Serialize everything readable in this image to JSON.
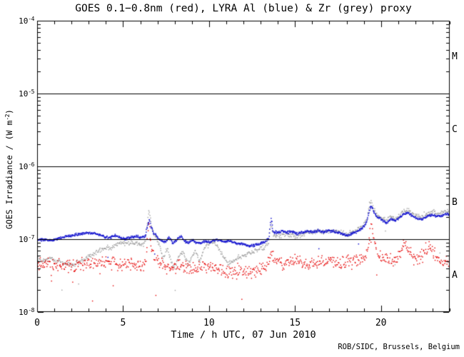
{
  "title": "GOES 0.1−0.8nm (red), LYRA Al (blue) & Zr (grey) proxy",
  "credit": "ROB/SIDC, Brussels, Belgium",
  "chart_data": {
    "type": "scatter",
    "title": "GOES 0.1−0.8nm (red), LYRA Al (blue) & Zr (grey) proxy",
    "xlabel": "Time / h UTC, 07 Jun 2010",
    "ylabel_parts": {
      "pre": "GOES Irradiance / (W m",
      "sup": "-2",
      "post": ")"
    },
    "background": "#ffffff",
    "axis_color": "#000000",
    "xlim": [
      0,
      24
    ],
    "ylog_range": [
      -8,
      -4
    ],
    "x_major_ticks": [
      0,
      5,
      10,
      15,
      20
    ],
    "x_minor_step": 1,
    "y_tick_exponents": [
      -4,
      -5,
      -6,
      -7,
      -8
    ],
    "hlines": [
      1e-05,
      1e-06,
      1e-07
    ],
    "flare_class_labels": [
      {
        "label": "M",
        "log_mid": -4.5
      },
      {
        "label": "C",
        "log_mid": -5.5
      },
      {
        "label": "B",
        "log_mid": -6.5
      },
      {
        "label": "A",
        "log_mid": -7.5
      }
    ],
    "legend_note": "colors named in title",
    "series": [
      {
        "name": "LYRA Zr proxy",
        "color": "#a0a0a0",
        "scale": 1e-07,
        "step": 0.03,
        "noise_dex": 0.016,
        "outlier_rate": 0.012,
        "outlier_min": 0.15,
        "outlier_span": 0.5,
        "dot": 1.4,
        "seed": 22,
        "points": [
          [
            0,
            0.56
          ],
          [
            0.4,
            0.52
          ],
          [
            0.8,
            0.55
          ],
          [
            1.2,
            0.5
          ],
          [
            1.6,
            0.47
          ],
          [
            2.0,
            0.44
          ],
          [
            2.4,
            0.49
          ],
          [
            2.8,
            0.55
          ],
          [
            3.2,
            0.62
          ],
          [
            3.6,
            0.72
          ],
          [
            4.0,
            0.76
          ],
          [
            4.4,
            0.8
          ],
          [
            4.8,
            0.88
          ],
          [
            5.2,
            0.91
          ],
          [
            5.6,
            0.89
          ],
          [
            6.0,
            0.87
          ],
          [
            6.25,
            0.92
          ],
          [
            6.42,
            2.0
          ],
          [
            6.5,
            2.6
          ],
          [
            6.62,
            1.55
          ],
          [
            6.78,
            1.18
          ],
          [
            6.95,
            0.98
          ],
          [
            7.1,
            0.8
          ],
          [
            7.3,
            0.56
          ],
          [
            7.55,
            0.76
          ],
          [
            7.8,
            0.48
          ],
          [
            8.0,
            0.41
          ],
          [
            8.25,
            0.62
          ],
          [
            8.5,
            0.66
          ],
          [
            8.75,
            0.46
          ],
          [
            9.0,
            0.6
          ],
          [
            9.2,
            0.68
          ],
          [
            9.45,
            0.5
          ],
          [
            9.7,
            0.78
          ],
          [
            10.0,
            0.88
          ],
          [
            10.25,
            0.92
          ],
          [
            10.5,
            0.78
          ],
          [
            10.8,
            0.58
          ],
          [
            11.1,
            0.47
          ],
          [
            11.4,
            0.52
          ],
          [
            11.7,
            0.57
          ],
          [
            12.0,
            0.61
          ],
          [
            12.3,
            0.65
          ],
          [
            12.6,
            0.7
          ],
          [
            12.9,
            0.74
          ],
          [
            13.2,
            0.8
          ],
          [
            13.45,
            0.95
          ],
          [
            13.58,
            1.75
          ],
          [
            13.7,
            1.12
          ],
          [
            13.9,
            1.1
          ],
          [
            14.2,
            1.16
          ],
          [
            14.5,
            1.2
          ],
          [
            14.8,
            1.16
          ],
          [
            15.1,
            1.1
          ],
          [
            15.4,
            1.2
          ],
          [
            15.7,
            1.26
          ],
          [
            16.0,
            1.23
          ],
          [
            16.3,
            1.3
          ],
          [
            16.6,
            1.26
          ],
          [
            17.0,
            1.34
          ],
          [
            17.4,
            1.3
          ],
          [
            17.7,
            1.24
          ],
          [
            18.0,
            1.18
          ],
          [
            18.3,
            1.28
          ],
          [
            18.6,
            1.38
          ],
          [
            18.9,
            1.55
          ],
          [
            19.15,
            1.9
          ],
          [
            19.32,
            3.1
          ],
          [
            19.42,
            3.3
          ],
          [
            19.55,
            2.6
          ],
          [
            19.7,
            2.25
          ],
          [
            20.0,
            2.0
          ],
          [
            20.3,
            1.85
          ],
          [
            20.55,
            2.1
          ],
          [
            20.8,
            1.95
          ],
          [
            21.0,
            2.1
          ],
          [
            21.3,
            2.45
          ],
          [
            21.55,
            2.55
          ],
          [
            21.8,
            2.3
          ],
          [
            22.1,
            2.15
          ],
          [
            22.4,
            2.12
          ],
          [
            22.7,
            2.32
          ],
          [
            23.0,
            2.38
          ],
          [
            23.2,
            2.28
          ],
          [
            23.5,
            2.35
          ],
          [
            23.8,
            2.48
          ],
          [
            24,
            2.42
          ]
        ]
      },
      {
        "name": "GOES 0.1-0.8nm",
        "color": "#e60000",
        "scale": 1e-08,
        "step": 0.03,
        "noise_dex": 0.045,
        "outlier_rate": 0.015,
        "outlier_min": 0.1,
        "outlier_span": 0.35,
        "dot": 1.4,
        "seed": 11,
        "points": [
          [
            0,
            4.6
          ],
          [
            0.5,
            4.8
          ],
          [
            1.0,
            4.6
          ],
          [
            1.5,
            4.5
          ],
          [
            2.0,
            4.6
          ],
          [
            2.5,
            4.8
          ],
          [
            3.0,
            4.9
          ],
          [
            3.5,
            5.0
          ],
          [
            4.0,
            4.9
          ],
          [
            4.5,
            4.7
          ],
          [
            5.0,
            4.6
          ],
          [
            5.5,
            4.5
          ],
          [
            6.0,
            4.5
          ],
          [
            6.3,
            4.8
          ],
          [
            6.45,
            20.0
          ],
          [
            6.6,
            8.0
          ],
          [
            6.8,
            5.5
          ],
          [
            7.0,
            5.0
          ],
          [
            7.4,
            4.4
          ],
          [
            7.8,
            4.1
          ],
          [
            8.2,
            4.4
          ],
          [
            8.6,
            4.1
          ],
          [
            9.0,
            3.9
          ],
          [
            9.4,
            4.2
          ],
          [
            9.8,
            4.4
          ],
          [
            10.2,
            4.1
          ],
          [
            10.6,
            3.9
          ],
          [
            11.0,
            3.6
          ],
          [
            11.3,
            3.4
          ],
          [
            11.6,
            3.8
          ],
          [
            12.0,
            3.6
          ],
          [
            12.4,
            3.5
          ],
          [
            12.8,
            3.8
          ],
          [
            13.1,
            4.1
          ],
          [
            13.35,
            4.5
          ],
          [
            13.58,
            6.5
          ],
          [
            13.8,
            5.0
          ],
          [
            14.2,
            4.6
          ],
          [
            14.6,
            4.9
          ],
          [
            15.0,
            5.1
          ],
          [
            15.4,
            4.8
          ],
          [
            15.8,
            4.5
          ],
          [
            16.2,
            4.8
          ],
          [
            16.6,
            5.1
          ],
          [
            17.0,
            5.3
          ],
          [
            17.4,
            5.0
          ],
          [
            17.8,
            4.7
          ],
          [
            18.2,
            4.9
          ],
          [
            18.6,
            5.2
          ],
          [
            19.0,
            5.6
          ],
          [
            19.25,
            8.0
          ],
          [
            19.42,
            16.0
          ],
          [
            19.55,
            10.0
          ],
          [
            19.7,
            7.0
          ],
          [
            20.0,
            5.8
          ],
          [
            20.4,
            5.2
          ],
          [
            20.8,
            5.1
          ],
          [
            21.1,
            6.2
          ],
          [
            21.35,
            9.5
          ],
          [
            21.6,
            7.2
          ],
          [
            21.9,
            5.6
          ],
          [
            22.2,
            5.4
          ],
          [
            22.55,
            6.8
          ],
          [
            22.8,
            8.3
          ],
          [
            23.05,
            6.3
          ],
          [
            23.3,
            5.3
          ],
          [
            23.6,
            4.8
          ],
          [
            24,
            4.4
          ]
        ]
      },
      {
        "name": "LYRA Al proxy",
        "color": "#1515cf",
        "scale": 1e-07,
        "step": 0.022,
        "noise_dex": 0.009,
        "outlier_rate": 0.004,
        "outlier_min": 0.1,
        "outlier_span": 0.25,
        "dot": 1.5,
        "seed": 33,
        "points": [
          [
            0,
            0.99
          ],
          [
            0.4,
            1.0
          ],
          [
            0.8,
            0.98
          ],
          [
            1.1,
            1.02
          ],
          [
            1.5,
            1.08
          ],
          [
            1.9,
            1.12
          ],
          [
            2.3,
            1.18
          ],
          [
            2.7,
            1.23
          ],
          [
            3.0,
            1.25
          ],
          [
            3.3,
            1.21
          ],
          [
            3.6,
            1.17
          ],
          [
            3.9,
            1.1
          ],
          [
            4.2,
            1.08
          ],
          [
            4.5,
            1.14
          ],
          [
            4.8,
            1.07
          ],
          [
            5.1,
            1.02
          ],
          [
            5.4,
            1.08
          ],
          [
            5.7,
            1.12
          ],
          [
            6.0,
            1.07
          ],
          [
            6.25,
            1.12
          ],
          [
            6.42,
            1.6
          ],
          [
            6.5,
            1.95
          ],
          [
            6.6,
            1.48
          ],
          [
            6.75,
            1.24
          ],
          [
            7.0,
            1.07
          ],
          [
            7.2,
            0.96
          ],
          [
            7.45,
            0.92
          ],
          [
            7.65,
            1.1
          ],
          [
            7.85,
            0.91
          ],
          [
            8.1,
            1.0
          ],
          [
            8.35,
            1.12
          ],
          [
            8.55,
            0.94
          ],
          [
            8.8,
            0.91
          ],
          [
            9.0,
            1.0
          ],
          [
            9.2,
            0.92
          ],
          [
            9.5,
            0.88
          ],
          [
            9.75,
            0.95
          ],
          [
            10.0,
            0.92
          ],
          [
            10.3,
            0.98
          ],
          [
            10.5,
            1.0
          ],
          [
            10.8,
            0.94
          ],
          [
            11.1,
            0.97
          ],
          [
            11.4,
            0.92
          ],
          [
            11.7,
            0.89
          ],
          [
            12.0,
            0.86
          ],
          [
            12.3,
            0.82
          ],
          [
            12.6,
            0.83
          ],
          [
            12.9,
            0.88
          ],
          [
            13.2,
            0.93
          ],
          [
            13.45,
            1.03
          ],
          [
            13.58,
            2.0
          ],
          [
            13.7,
            1.28
          ],
          [
            13.9,
            1.25
          ],
          [
            14.2,
            1.3
          ],
          [
            14.5,
            1.26
          ],
          [
            14.8,
            1.29
          ],
          [
            15.1,
            1.22
          ],
          [
            15.4,
            1.27
          ],
          [
            15.7,
            1.3
          ],
          [
            16.0,
            1.27
          ],
          [
            16.3,
            1.33
          ],
          [
            16.6,
            1.29
          ],
          [
            17.0,
            1.33
          ],
          [
            17.4,
            1.27
          ],
          [
            17.7,
            1.21
          ],
          [
            18.0,
            1.13
          ],
          [
            18.3,
            1.21
          ],
          [
            18.6,
            1.31
          ],
          [
            18.9,
            1.45
          ],
          [
            19.15,
            1.75
          ],
          [
            19.32,
            2.7
          ],
          [
            19.42,
            2.9
          ],
          [
            19.55,
            2.4
          ],
          [
            19.7,
            2.1
          ],
          [
            20.0,
            1.86
          ],
          [
            20.3,
            1.7
          ],
          [
            20.55,
            1.95
          ],
          [
            20.8,
            1.8
          ],
          [
            21.0,
            1.95
          ],
          [
            21.3,
            2.25
          ],
          [
            21.55,
            2.35
          ],
          [
            21.8,
            2.1
          ],
          [
            22.1,
            1.95
          ],
          [
            22.4,
            1.92
          ],
          [
            22.7,
            2.12
          ],
          [
            23.0,
            2.18
          ],
          [
            23.2,
            2.08
          ],
          [
            23.5,
            2.14
          ],
          [
            23.8,
            2.26
          ],
          [
            24,
            2.2
          ]
        ]
      }
    ]
  }
}
